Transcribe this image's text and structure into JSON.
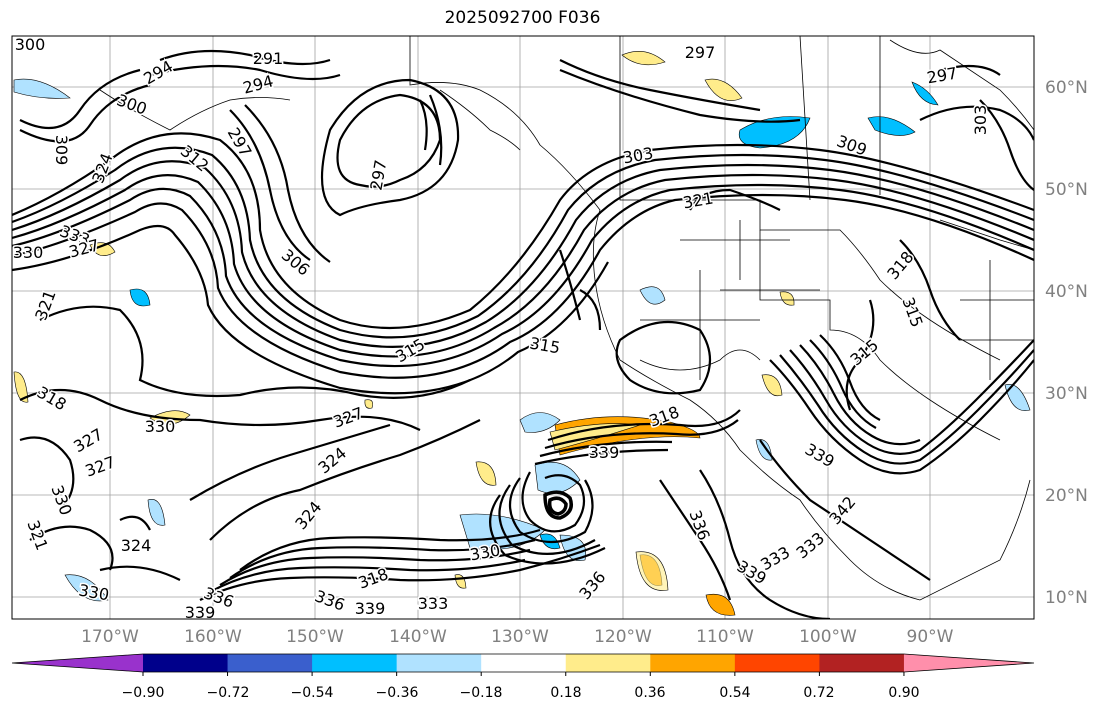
{
  "title": "2025092700 F036",
  "map": {
    "lat_labels": [
      "60°N",
      "50°N",
      "40°N",
      "30°N",
      "20°N",
      "10°N"
    ],
    "lon_labels": [
      "170°W",
      "160°W",
      "150°W",
      "140°W",
      "130°W",
      "120°W",
      "110°W",
      "100°W",
      "90°W"
    ],
    "contour_labels": [
      {
        "text": "300"
      },
      {
        "text": "291"
      },
      {
        "text": "294"
      },
      {
        "text": "294"
      },
      {
        "text": "297"
      },
      {
        "text": "297"
      },
      {
        "text": "300"
      },
      {
        "text": "297"
      },
      {
        "text": "303"
      },
      {
        "text": "309"
      },
      {
        "text": "309"
      },
      {
        "text": "324"
      },
      {
        "text": "312"
      },
      {
        "text": "297"
      },
      {
        "text": "303"
      },
      {
        "text": "321"
      },
      {
        "text": "333"
      },
      {
        "text": "330"
      },
      {
        "text": "327"
      },
      {
        "text": "306"
      },
      {
        "text": "318"
      },
      {
        "text": "321"
      },
      {
        "text": "315"
      },
      {
        "text": "315"
      },
      {
        "text": "315"
      },
      {
        "text": "315"
      },
      {
        "text": "318"
      },
      {
        "text": "327"
      },
      {
        "text": "330"
      },
      {
        "text": "327"
      },
      {
        "text": "318"
      },
      {
        "text": "339"
      },
      {
        "text": "324"
      },
      {
        "text": "327"
      },
      {
        "text": "339"
      },
      {
        "text": "330"
      },
      {
        "text": "324"
      },
      {
        "text": "321"
      },
      {
        "text": "336"
      },
      {
        "text": "330"
      },
      {
        "text": "324"
      },
      {
        "text": "330"
      },
      {
        "text": "333"
      },
      {
        "text": "336"
      },
      {
        "text": "339"
      },
      {
        "text": "318"
      },
      {
        "text": "336"
      },
      {
        "text": "339"
      },
      {
        "text": "333"
      },
      {
        "text": "336"
      },
      {
        "text": "333"
      },
      {
        "text": "342"
      },
      {
        "text": "339"
      }
    ]
  },
  "colorbar": {
    "ticks": [
      "−0.90",
      "−0.72",
      "−0.54",
      "−0.36",
      "−0.18",
      "0.18",
      "0.36",
      "0.54",
      "0.72",
      "0.90"
    ],
    "colors": [
      "#9932cc",
      "#00008b",
      "#3a5fcd",
      "#00bfff",
      "#b0e2ff",
      "#ffffff",
      "#ffec8b",
      "#ffa500",
      "#ff4500",
      "#b22222",
      "#ff8fab"
    ]
  }
}
